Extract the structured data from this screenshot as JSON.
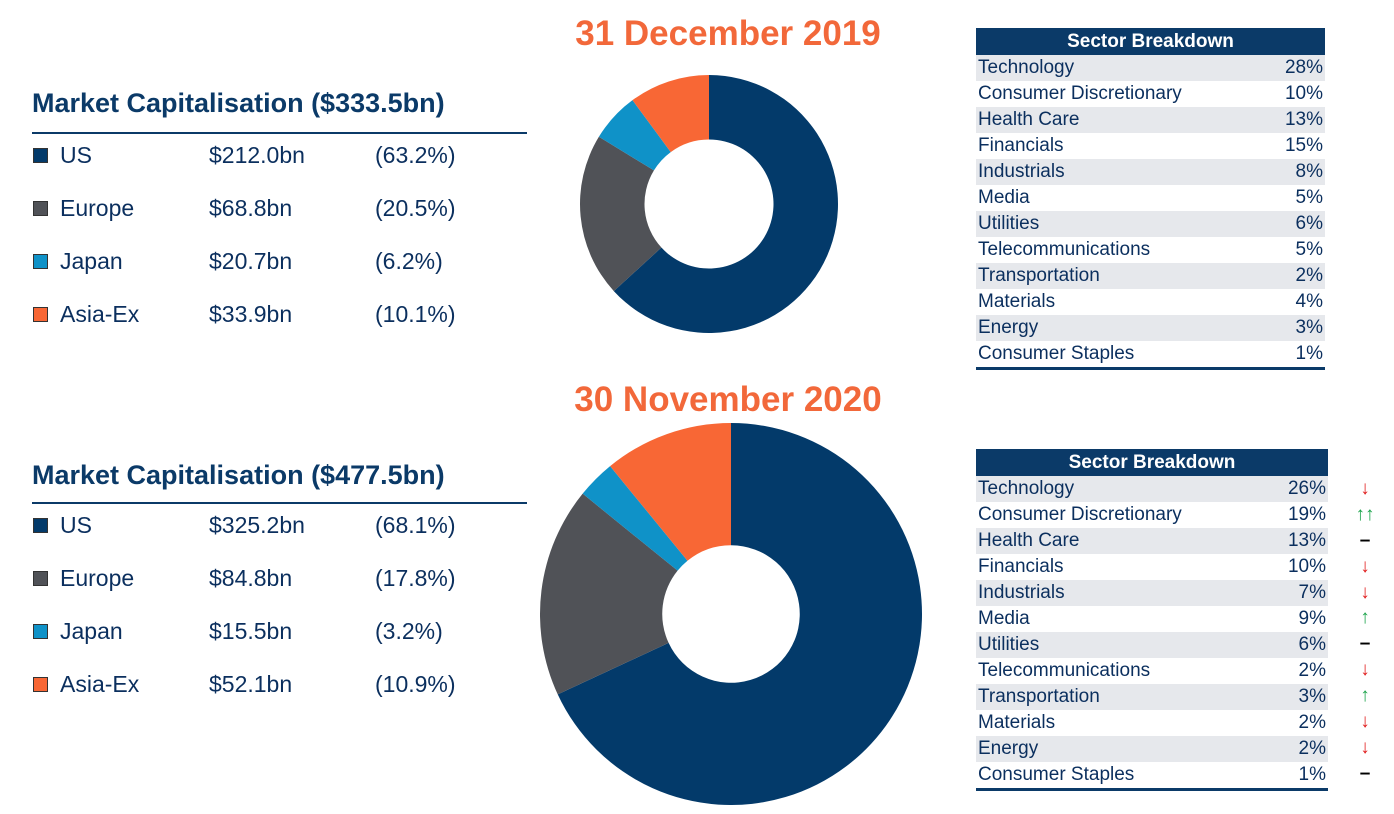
{
  "colors": {
    "US": "#033a6a",
    "Europe": "#505257",
    "Japan": "#0f92c8",
    "Asia-Ex": "#f86735",
    "accent_orange": "#f2683a",
    "navy": "#0b3a68",
    "trend_up": "#1aa34a",
    "trend_down": "#e01d1d"
  },
  "chart_data": [
    {
      "type": "pie",
      "date": "31 December 2019",
      "title": "Market Capitalisation ($333.5bn)",
      "categories": [
        "US",
        "Europe",
        "Japan",
        "Asia-Ex"
      ],
      "values": [
        212.0,
        68.8,
        20.7,
        33.9
      ],
      "value_labels": [
        "$212.0bn",
        "$68.8bn",
        "$20.7bn",
        "$33.9bn"
      ],
      "percent_labels": [
        "(63.2%)",
        "(20.5%)",
        "(6.2%)",
        "(10.1%)"
      ],
      "sector_breakdown": {
        "header": "Sector Breakdown",
        "rows": [
          {
            "sector": "Technology",
            "pct": "28%"
          },
          {
            "sector": "Consumer Discretionary",
            "pct": "10%"
          },
          {
            "sector": "Health Care",
            "pct": "13%"
          },
          {
            "sector": "Financials",
            "pct": "15%"
          },
          {
            "sector": "Industrials",
            "pct": "8%"
          },
          {
            "sector": "Media",
            "pct": "5%"
          },
          {
            "sector": "Utilities",
            "pct": "6%"
          },
          {
            "sector": "Telecommunications",
            "pct": "5%"
          },
          {
            "sector": "Transportation",
            "pct": "2%"
          },
          {
            "sector": "Materials",
            "pct": "4%"
          },
          {
            "sector": "Energy",
            "pct": "3%"
          },
          {
            "sector": "Consumer Staples",
            "pct": "1%"
          }
        ]
      }
    },
    {
      "type": "pie",
      "date": "30 November 2020",
      "title": "Market Capitalisation ($477.5bn)",
      "categories": [
        "US",
        "Europe",
        "Japan",
        "Asia-Ex"
      ],
      "values": [
        325.2,
        84.8,
        15.5,
        52.1
      ],
      "value_labels": [
        "$325.2bn",
        "$84.8bn",
        "$15.5bn",
        "$52.1bn"
      ],
      "percent_labels": [
        "(68.1%)",
        "(17.8%)",
        "(3.2%)",
        "(10.9%)"
      ],
      "sector_breakdown": {
        "header": "Sector Breakdown",
        "rows": [
          {
            "sector": "Technology",
            "pct": "26%",
            "trend": "down"
          },
          {
            "sector": "Consumer Discretionary",
            "pct": "19%",
            "trend": "up-up"
          },
          {
            "sector": "Health Care",
            "pct": "13%",
            "trend": "flat"
          },
          {
            "sector": "Financials",
            "pct": "10%",
            "trend": "down"
          },
          {
            "sector": "Industrials",
            "pct": "7%",
            "trend": "down"
          },
          {
            "sector": "Media",
            "pct": "9%",
            "trend": "up"
          },
          {
            "sector": "Utilities",
            "pct": "6%",
            "trend": "flat"
          },
          {
            "sector": "Telecommunications",
            "pct": "2%",
            "trend": "down"
          },
          {
            "sector": "Transportation",
            "pct": "3%",
            "trend": "up"
          },
          {
            "sector": "Materials",
            "pct": "2%",
            "trend": "down"
          },
          {
            "sector": "Energy",
            "pct": "2%",
            "trend": "down"
          },
          {
            "sector": "Consumer Staples",
            "pct": "1%",
            "trend": "flat"
          }
        ]
      }
    }
  ]
}
